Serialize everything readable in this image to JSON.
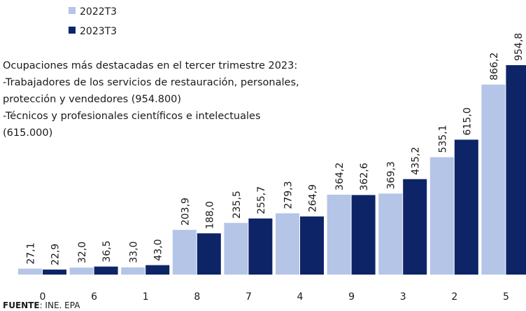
{
  "chart_data": {
    "type": "bar",
    "categories": [
      "0",
      "6",
      "1",
      "8",
      "7",
      "4",
      "9",
      "3",
      "2",
      "5"
    ],
    "series": [
      {
        "name": "2022T3",
        "color": "#b4c5e7",
        "label_color": "#7594d0",
        "values": [
          27.1,
          32.0,
          33.0,
          203.9,
          235.5,
          279.3,
          364.2,
          369.3,
          535.1,
          866.2
        ],
        "value_labels": [
          "27,1",
          "32,0",
          "33,0",
          "203,9",
          "235,5",
          "279,3",
          "364,2",
          "369,3",
          "535,1",
          "866,2"
        ]
      },
      {
        "name": "2023T3",
        "color": "#0d2467",
        "label_color": "#0d2467",
        "values": [
          22.9,
          36.5,
          43.0,
          188.0,
          255.7,
          264.9,
          362.6,
          435.2,
          615.0,
          954.8
        ],
        "value_labels": [
          "22,9",
          "36,5",
          "43,0",
          "188,0",
          "255,7",
          "264,9",
          "362,6",
          "435,2",
          "615,0",
          "954,8"
        ]
      }
    ],
    "annotation": [
      "Ocupaciones más destacadas en el tercer trimestre 2023:",
      "-Trabajadores de los servicios de restauración, personales,",
      "protección y vendedores (954.800)",
      "-Técnicos y profesionales científicos e intelectuales",
      "(615.000)"
    ],
    "source_label": "FUENTE",
    "source": ": INE. EPA"
  }
}
